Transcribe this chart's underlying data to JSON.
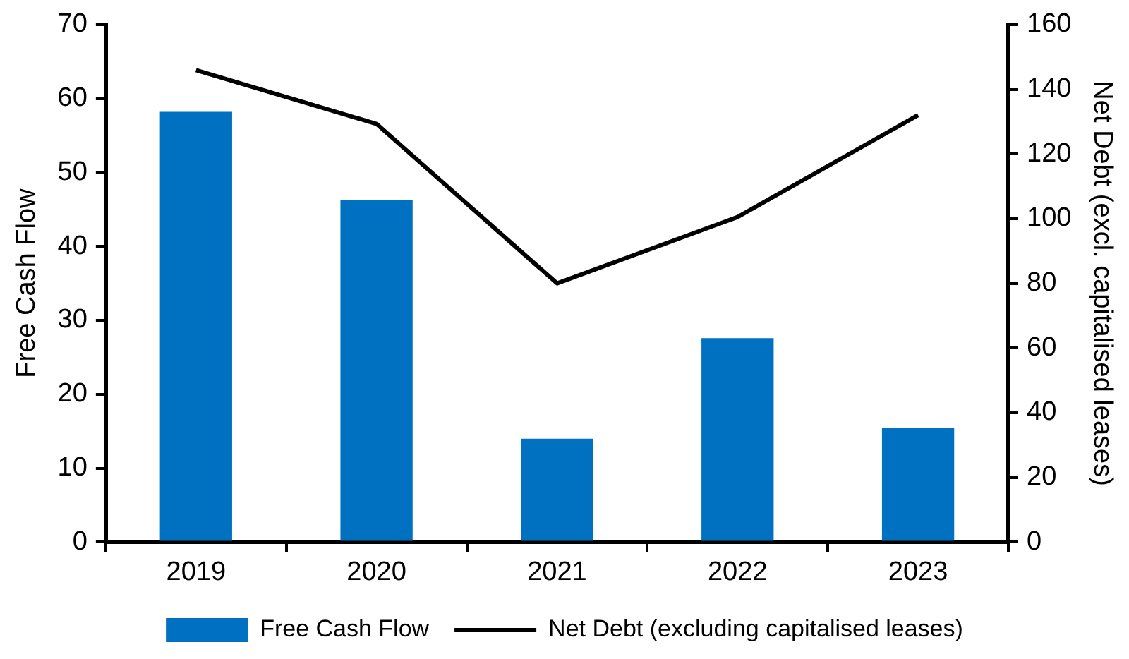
{
  "chart_data": {
    "type": "bar",
    "ylabel": "Free Cash Flow",
    "y2label": "Net Debt (excl. capitalised leases)",
    "categories": [
      "2019",
      "2020",
      "2021",
      "2022",
      "2023"
    ],
    "series": [
      {
        "name": "Free Cash Flow",
        "color": "#0070c0",
        "values": [
          58.2,
          46.3,
          14.0,
          27.6,
          15.4
        ]
      },
      {
        "name": "Net Debt (excluding capitalised leases)",
        "type": "line",
        "axis": "y2",
        "color": "#000000",
        "values": [
          145.9,
          129.3,
          80.0,
          100.5,
          132.0
        ]
      }
    ],
    "ylim": [
      0,
      70
    ],
    "yticks": [
      0,
      10,
      20,
      30,
      40,
      50,
      60,
      70
    ],
    "y2lim": [
      0,
      160
    ],
    "y2ticks": [
      0,
      20,
      40,
      60,
      80,
      100,
      120,
      140,
      160
    ],
    "grid": false,
    "legend": "bottom",
    "marker": "none",
    "line_style": "solid"
  }
}
